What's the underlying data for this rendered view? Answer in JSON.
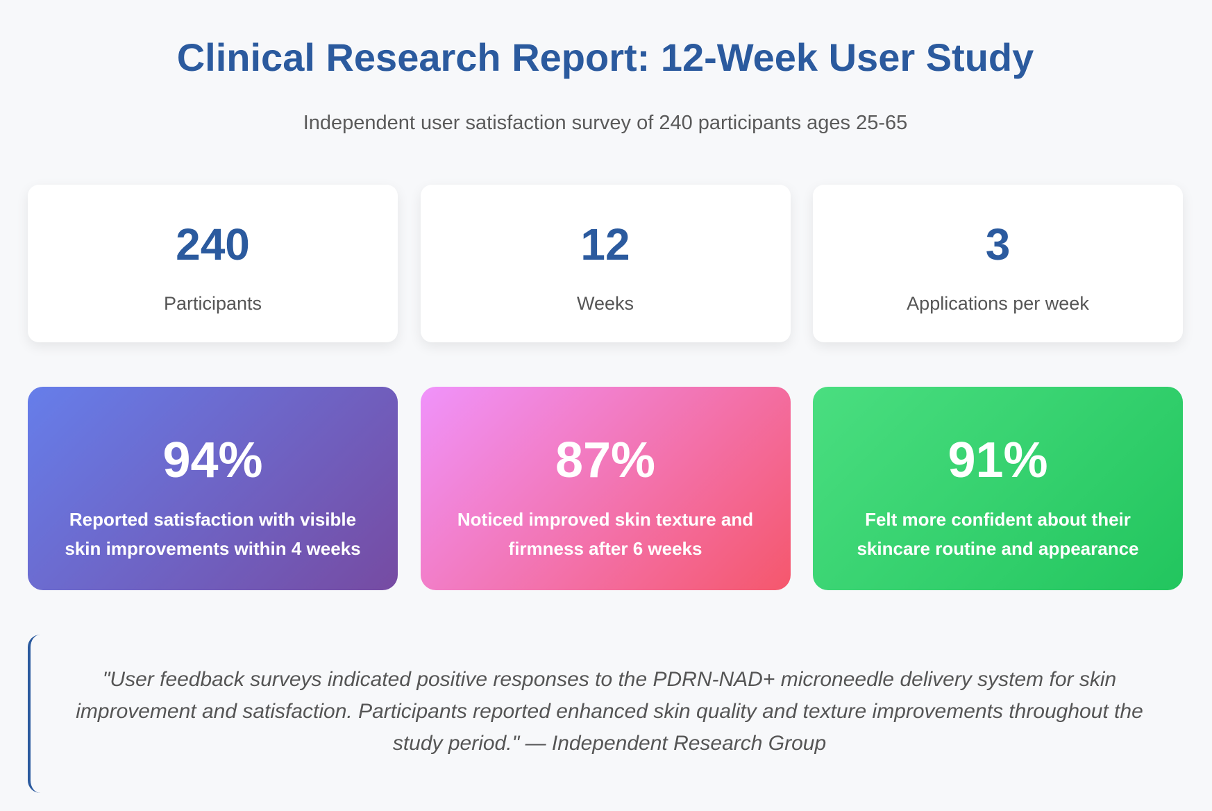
{
  "header": {
    "title": "Clinical Research Report: 12-Week User Study",
    "subtitle": "Independent user satisfaction survey of 240 participants ages 25-65"
  },
  "stats": [
    {
      "value": "240",
      "label": "Participants"
    },
    {
      "value": "12",
      "label": "Weeks"
    },
    {
      "value": "3",
      "label": "Applications per week"
    }
  ],
  "results": [
    {
      "value": "94%",
      "description": "Reported satisfaction with visible skin improvements within 4 weeks",
      "gradient_start": "#667eea",
      "gradient_end": "#764ba2"
    },
    {
      "value": "87%",
      "description": "Noticed improved skin texture and firmness after 6 weeks",
      "gradient_start": "#f093fb",
      "gradient_end": "#f5576c"
    },
    {
      "value": "91%",
      "description": "Felt more confident about their skincare routine and appearance",
      "gradient_start": "#4ade80",
      "gradient_end": "#22c55e"
    }
  ],
  "quote": {
    "text": "\"User feedback surveys indicated positive responses to the PDRN-NAD+ microneedle delivery system for skin improvement and satisfaction. Participants reported enhanced skin quality and texture improvements throughout the study period.\" — Independent Research Group"
  },
  "colors": {
    "accent": "#2b5a9e",
    "background": "#f7f8fa",
    "muted_text": "#555555"
  }
}
